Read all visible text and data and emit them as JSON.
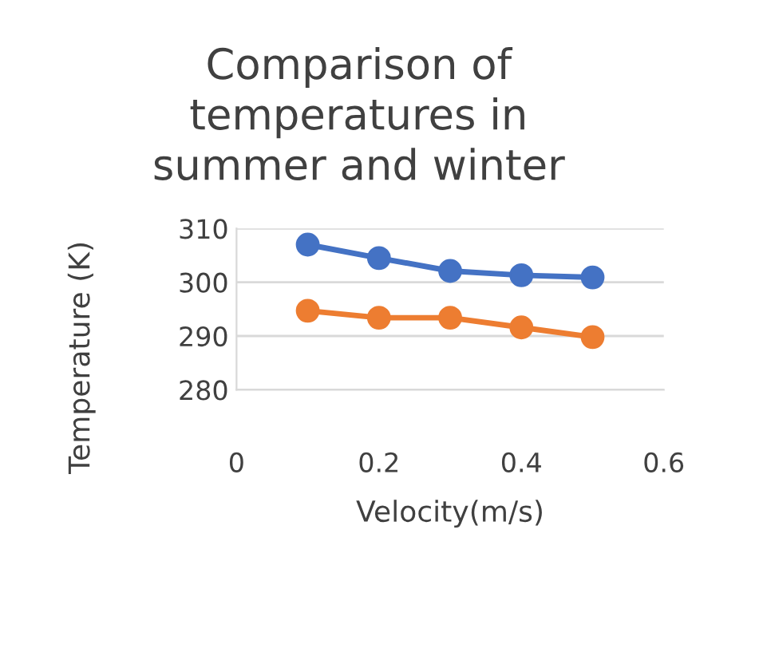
{
  "chart_data": {
    "type": "line",
    "title": "Comparison of\ntemperatures in\nsummer and winter",
    "xlabel": "Velocity(m/s)",
    "ylabel": "Temperature (K)",
    "x": [
      0.1,
      0.2,
      0.3,
      0.4,
      0.5
    ],
    "series": [
      {
        "color": "#4472c4",
        "values": [
          307.0,
          304.5,
          302.1,
          301.3,
          300.9
        ]
      },
      {
        "color": "#ed7d31",
        "values": [
          294.7,
          293.4,
          293.4,
          291.6,
          289.8
        ]
      }
    ],
    "xlim": [
      0,
      0.6
    ],
    "xticks": [
      0,
      0.2,
      0.4,
      0.6
    ],
    "ylim": [
      280,
      310
    ],
    "yticks": [
      280,
      290,
      300,
      310
    ],
    "grid": "y",
    "marker": "circle",
    "line_style": "solid"
  }
}
